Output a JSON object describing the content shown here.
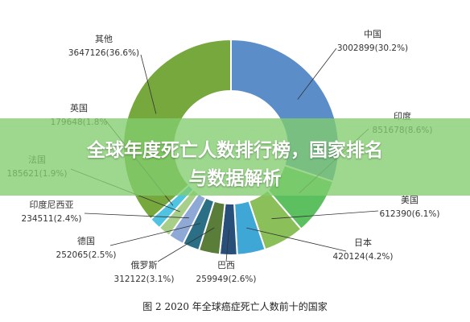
{
  "chart_data": {
    "type": "pie",
    "donut": true,
    "caption": "图 2 2020 年全球癌症死亡人数前十的国家",
    "slices": [
      {
        "name": "中国",
        "label": "3002899(30.2%)",
        "value": 3002899,
        "percent": 30.2,
        "color": "#5b8dc9"
      },
      {
        "name": "印度",
        "label": "851678(8.6%)",
        "value": 851678,
        "percent": 8.6,
        "color": "#5cbf60"
      },
      {
        "name": "美国",
        "label": "612390(6.1%)",
        "value": 612390,
        "percent": 6.1,
        "color": "#8bbf5a"
      },
      {
        "name": "日本",
        "label": "420124(4.2%)",
        "value": 420124,
        "percent": 4.2,
        "color": "#3fa7d6"
      },
      {
        "name": "巴西",
        "label": "259949(2.6%)",
        "value": 259949,
        "percent": 2.6,
        "color": "#284f7a"
      },
      {
        "name": "俄罗斯",
        "label": "312122(3.1%)",
        "value": 312122,
        "percent": 3.1,
        "color": "#5a7d3a"
      },
      {
        "name": "德国",
        "label": "252065(2.5%)",
        "value": 252065,
        "percent": 2.5,
        "color": "#2a6f86"
      },
      {
        "name": "印度尼西亚",
        "label": "234511(2.4%)",
        "value": 234511,
        "percent": 2.4,
        "color": "#8fa9d6"
      },
      {
        "name": "法国",
        "label": "185621(1.9%)",
        "value": 185621,
        "percent": 1.9,
        "color": "#a7cf8a"
      },
      {
        "name": "英国",
        "label": "179648(1.8%",
        "value": 179648,
        "percent": 1.8,
        "color": "#4fc3e0"
      },
      {
        "name": "其他",
        "label": "3647126(36.6%)",
        "value": 3647126,
        "percent": 36.6,
        "color": "#76a83e"
      }
    ]
  },
  "banner": {
    "line1": "全球年度死亡人数排行榜，国家排名",
    "line2": "与数据解析"
  }
}
